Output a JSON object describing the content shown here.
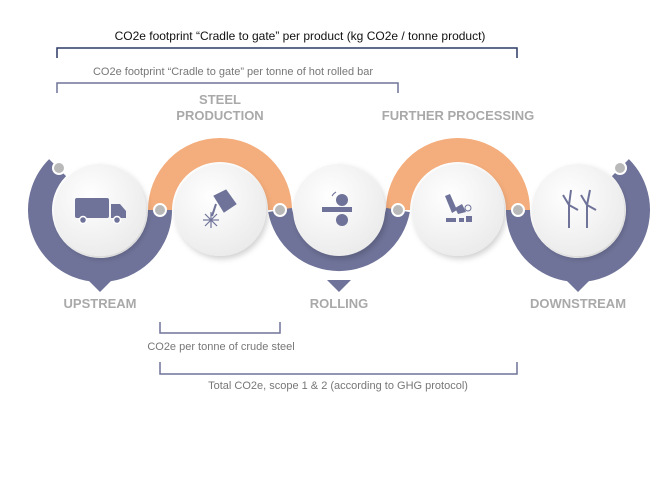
{
  "brackets": {
    "product": "CO2e footprint “Cradle to gate” per product (kg CO2e / tonne product)",
    "hot_rolled_bar": "CO2e footprint “Cradle to gate” per tonne of hot rolled bar",
    "crude_steel": "CO2e per tonne of crude steel",
    "total": "Total CO2e, scope 1 & 2 (according to GHG protocol)"
  },
  "stages": [
    {
      "label": "UPSTREAM",
      "icon": "truck-icon"
    },
    {
      "label_line1": "STEEL",
      "label_line2": "PRODUCTION",
      "icon": "ladle-pouring-icon"
    },
    {
      "label": "ROLLING",
      "icon": "rolling-mill-icon"
    },
    {
      "label": "FURTHER PROCESSING",
      "icon": "processing-machine-icon"
    },
    {
      "label": "DOWNSTREAM",
      "icon": "wind-turbine-icon"
    }
  ],
  "colors": {
    "blue": "#6f7399",
    "orange": "#f4ad7c",
    "dot": "#b9b9b9",
    "label": "#a9a9a9",
    "bracket_dark": "#2b3a67"
  }
}
